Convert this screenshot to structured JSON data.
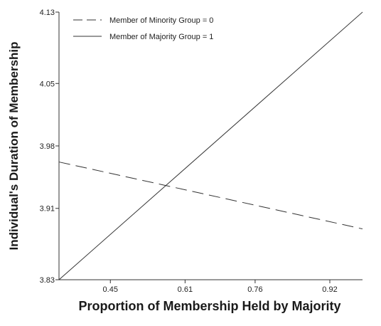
{
  "chart_data": {
    "type": "line",
    "xlabel": "Proportion of Membership Held by Majority",
    "ylabel": "Individual's Duration of Membership",
    "xlim": [
      0.34,
      0.99
    ],
    "ylim": [
      3.83,
      4.13
    ],
    "x_ticks": [
      0.45,
      0.61,
      0.76,
      0.92
    ],
    "y_ticks": [
      3.83,
      3.91,
      3.98,
      4.05,
      4.13
    ],
    "x_tick_labels": [
      "0.45",
      "0.61",
      "0.76",
      "0.92"
    ],
    "y_tick_labels": [
      "3.83",
      "3.91",
      "3.98",
      "4.05",
      "4.13"
    ],
    "legend_placement": "top-left",
    "grid": false,
    "series": [
      {
        "name": "Member of Minority Group = 0",
        "style": "dashed",
        "color": "#333333",
        "x": [
          0.34,
          0.99
        ],
        "y": [
          3.962,
          3.887
        ]
      },
      {
        "name": "Member of Majority Group = 1",
        "style": "solid",
        "color": "#333333",
        "x": [
          0.34,
          0.99
        ],
        "y": [
          3.83,
          4.13
        ]
      }
    ]
  }
}
